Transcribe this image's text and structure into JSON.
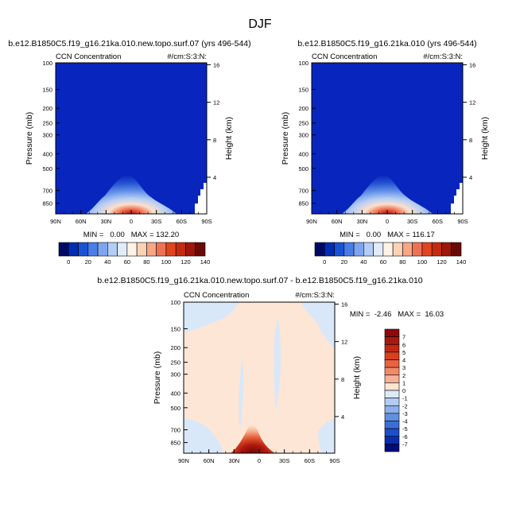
{
  "figure": {
    "title": "DJF"
  },
  "chart_data": [
    {
      "type": "heatmap",
      "title": "b.e12.B1850C5.f19_g16.21ka.010.new.topo.surf.07 (yrs 496-544)",
      "left_label": "CCN Concentration",
      "right_label": "#/cm:S:3:N:",
      "ylabel": "Pressure (mb)",
      "ylabel_right": "Height (km)",
      "x_ticks": [
        "90N",
        "60N",
        "30N",
        "0",
        "30S",
        "60S",
        "90S"
      ],
      "y_ticks": [
        100,
        150,
        200,
        250,
        300,
        400,
        500,
        700,
        850
      ],
      "y_right_ticks": [
        16,
        12,
        8,
        4
      ],
      "ylim": [
        100,
        1000
      ],
      "y_scale": "log",
      "stats": "MIN =   0.00   MAX = 132.20",
      "colorbar": {
        "orientation": "horizontal",
        "tick_labels": [
          "0",
          "20",
          "40",
          "60",
          "80",
          "100",
          "120",
          "140"
        ],
        "colors": [
          "#000a66",
          "#002db3",
          "#1a52d6",
          "#4a7ee6",
          "#7ea6f0",
          "#b3cdf8",
          "#e1ecfb",
          "#fff3e8",
          "#fcd2b4",
          "#f7a686",
          "#ef7154",
          "#e0451f",
          "#c32a0f",
          "#9c170a",
          "#6b0a04"
        ]
      },
      "data_note": "Field near 0 #/cm3 everywhere except a surface maximum near 10N (850 mb) reaching 132.20"
    },
    {
      "type": "heatmap",
      "title": "b.e12.B1850C5.f19_g16.21ka.010 (yrs 496-544)",
      "left_label": "CCN Concentration",
      "right_label": "#/cm:S:3:N:",
      "ylabel": "Pressure (mb)",
      "ylabel_right": "Height (km)",
      "x_ticks": [
        "90N",
        "60N",
        "30N",
        "0",
        "30S",
        "60S",
        "90S"
      ],
      "y_ticks": [
        100,
        150,
        200,
        250,
        300,
        400,
        500,
        700,
        850
      ],
      "y_right_ticks": [
        16,
        12,
        8,
        4
      ],
      "ylim": [
        100,
        1000
      ],
      "y_scale": "log",
      "stats": "MIN =   0.00   MAX = 116.17",
      "colorbar": {
        "orientation": "horizontal",
        "tick_labels": [
          "0",
          "20",
          "40",
          "60",
          "80",
          "100",
          "120",
          "140"
        ],
        "colors": [
          "#000a66",
          "#002db3",
          "#1a52d6",
          "#4a7ee6",
          "#7ea6f0",
          "#b3cdf8",
          "#e1ecfb",
          "#fff3e8",
          "#fcd2b4",
          "#f7a686",
          "#ef7154",
          "#e0451f",
          "#c32a0f",
          "#9c170a",
          "#6b0a04"
        ]
      },
      "data_note": "Field near 0 #/cm3 everywhere except a surface maximum near 10N (850 mb) reaching 116.17"
    },
    {
      "type": "heatmap",
      "title": "b.e12.B1850C5.f19_g16.21ka.010.new.topo.surf.07 - b.e12.B1850C5.f19_g16.21ka.010",
      "left_label": "CCN Concentration",
      "right_label": "#/cm:S:3:N:",
      "ylabel": "Pressure (mb)",
      "ylabel_right": "Height (km)",
      "x_ticks": [
        "90N",
        "60N",
        "30N",
        "0",
        "30S",
        "60S",
        "90S"
      ],
      "y_ticks": [
        100,
        150,
        200,
        250,
        300,
        400,
        500,
        700,
        850
      ],
      "y_right_ticks": [
        16,
        12,
        8,
        4
      ],
      "ylim": [
        100,
        1000
      ],
      "y_scale": "log",
      "stats": "MIN =  -2.46   MAX =  16.03",
      "colorbar": {
        "orientation": "vertical",
        "tick_labels": [
          "7",
          "6",
          "5",
          "4",
          "3",
          "2",
          "1",
          "0",
          "-1",
          "-2",
          "-3",
          "-4",
          "-5",
          "-6",
          "-7"
        ],
        "colors": [
          "#8c0a0a",
          "#a51a10",
          "#c02a14",
          "#d84020",
          "#e86240",
          "#f08a6a",
          "#f6b196",
          "#fde3d0",
          "#dbe9f8",
          "#b3cdf2",
          "#8cb0ea",
          "#6090e0",
          "#3b6fd6",
          "#1d4fc6",
          "#0a2eaa",
          "#000c7a"
        ]
      },
      "data_note": "Mostly near 0 to +1; positive maximum 16.03 near 10N at the surface; weak negatives near 0-1"
    }
  ]
}
